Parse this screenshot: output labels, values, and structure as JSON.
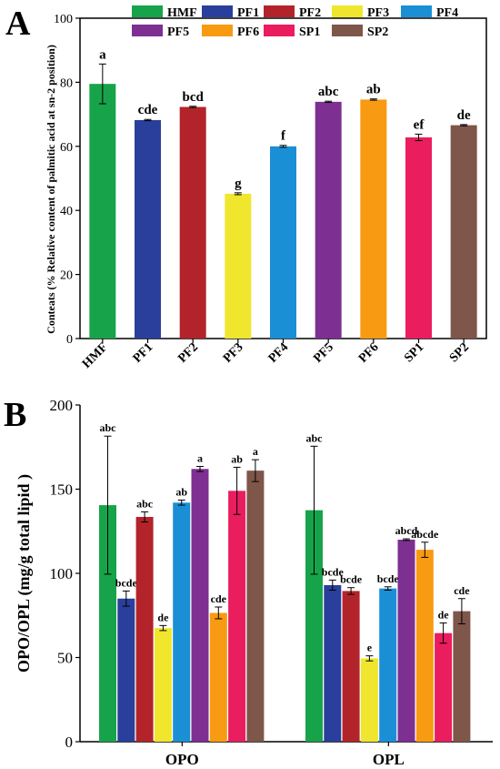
{
  "chart_data": [
    {
      "panel": "A",
      "type": "bar",
      "title": "",
      "xlabel": "",
      "ylabel": "Conteats (% Relative content of palmitic acid at sn-2 position)",
      "ylim": [
        0,
        100
      ],
      "yticks": [
        0,
        20,
        40,
        60,
        80,
        100
      ],
      "grid": false,
      "legend_position": "top",
      "legend": [
        "HMF",
        "PF1",
        "PF2",
        "PF3",
        "PF4",
        "PF5",
        "PF6",
        "SP1",
        "SP2"
      ],
      "categories": [
        "HMF",
        "PF1",
        "PF2",
        "PF3",
        "PF4",
        "PF5",
        "PF6",
        "SP1",
        "SP2"
      ],
      "values": [
        79.5,
        68.2,
        72.3,
        45.2,
        60.0,
        73.9,
        74.6,
        62.8,
        66.6
      ],
      "errors": [
        6.2,
        0.2,
        0.2,
        0.3,
        0.3,
        0.2,
        0.2,
        1.0,
        0.2
      ],
      "significance": [
        "a",
        "cde",
        "bcd",
        "g",
        "f",
        "abc",
        "ab",
        "ef",
        "de"
      ],
      "colors": [
        "#17a34a",
        "#2a3f9b",
        "#b3242a",
        "#f0e62e",
        "#1a8fd6",
        "#7e2f92",
        "#f89a12",
        "#ea1d5f",
        "#7f564a"
      ]
    },
    {
      "panel": "B",
      "type": "bar",
      "title": "",
      "xlabel": "",
      "ylabel": "OPO/OPL (mg/g total lipid )",
      "ylim": [
        0,
        200
      ],
      "yticks": [
        0,
        50,
        100,
        150,
        200
      ],
      "grid": false,
      "categories": [
        "OPO",
        "OPL"
      ],
      "series": [
        {
          "name": "HMF",
          "values": [
            140.5,
            137.5
          ],
          "errors": [
            41.0,
            38.0
          ],
          "labels": [
            "abc",
            "abc"
          ]
        },
        {
          "name": "PF1",
          "values": [
            85.0,
            93.0
          ],
          "errors": [
            4.5,
            3.0
          ],
          "labels": [
            "bcde",
            "bcde"
          ]
        },
        {
          "name": "PF2",
          "values": [
            133.5,
            89.5
          ],
          "errors": [
            3.0,
            2.0
          ],
          "labels": [
            "abc",
            "bcde"
          ]
        },
        {
          "name": "PF3",
          "values": [
            67.5,
            49.5
          ],
          "errors": [
            1.5,
            1.5
          ],
          "labels": [
            "de",
            "e"
          ]
        },
        {
          "name": "PF4",
          "values": [
            142.0,
            91.0
          ],
          "errors": [
            1.5,
            1.0
          ],
          "labels": [
            "ab",
            "bcde"
          ]
        },
        {
          "name": "PF5",
          "values": [
            162.0,
            120.0
          ],
          "errors": [
            1.5,
            0.5
          ],
          "labels": [
            "a",
            "abcd"
          ]
        },
        {
          "name": "PF6",
          "values": [
            76.5,
            114.0
          ],
          "errors": [
            3.5,
            4.5
          ],
          "labels": [
            "cde",
            "abcde"
          ]
        },
        {
          "name": "SP1",
          "values": [
            149.0,
            64.5
          ],
          "errors": [
            14.0,
            6.0
          ],
          "labels": [
            "ab",
            "de"
          ]
        },
        {
          "name": "SP2",
          "values": [
            161.0,
            77.5
          ],
          "errors": [
            6.5,
            7.5
          ],
          "labels": [
            "a",
            "cde"
          ]
        }
      ],
      "colors": [
        "#17a34a",
        "#2a3f9b",
        "#b3242a",
        "#f0e62e",
        "#1a8fd6",
        "#7e2f92",
        "#f89a12",
        "#ea1d5f",
        "#7f564a"
      ]
    }
  ],
  "panel_labels": {
    "a": "A",
    "b": "B"
  }
}
